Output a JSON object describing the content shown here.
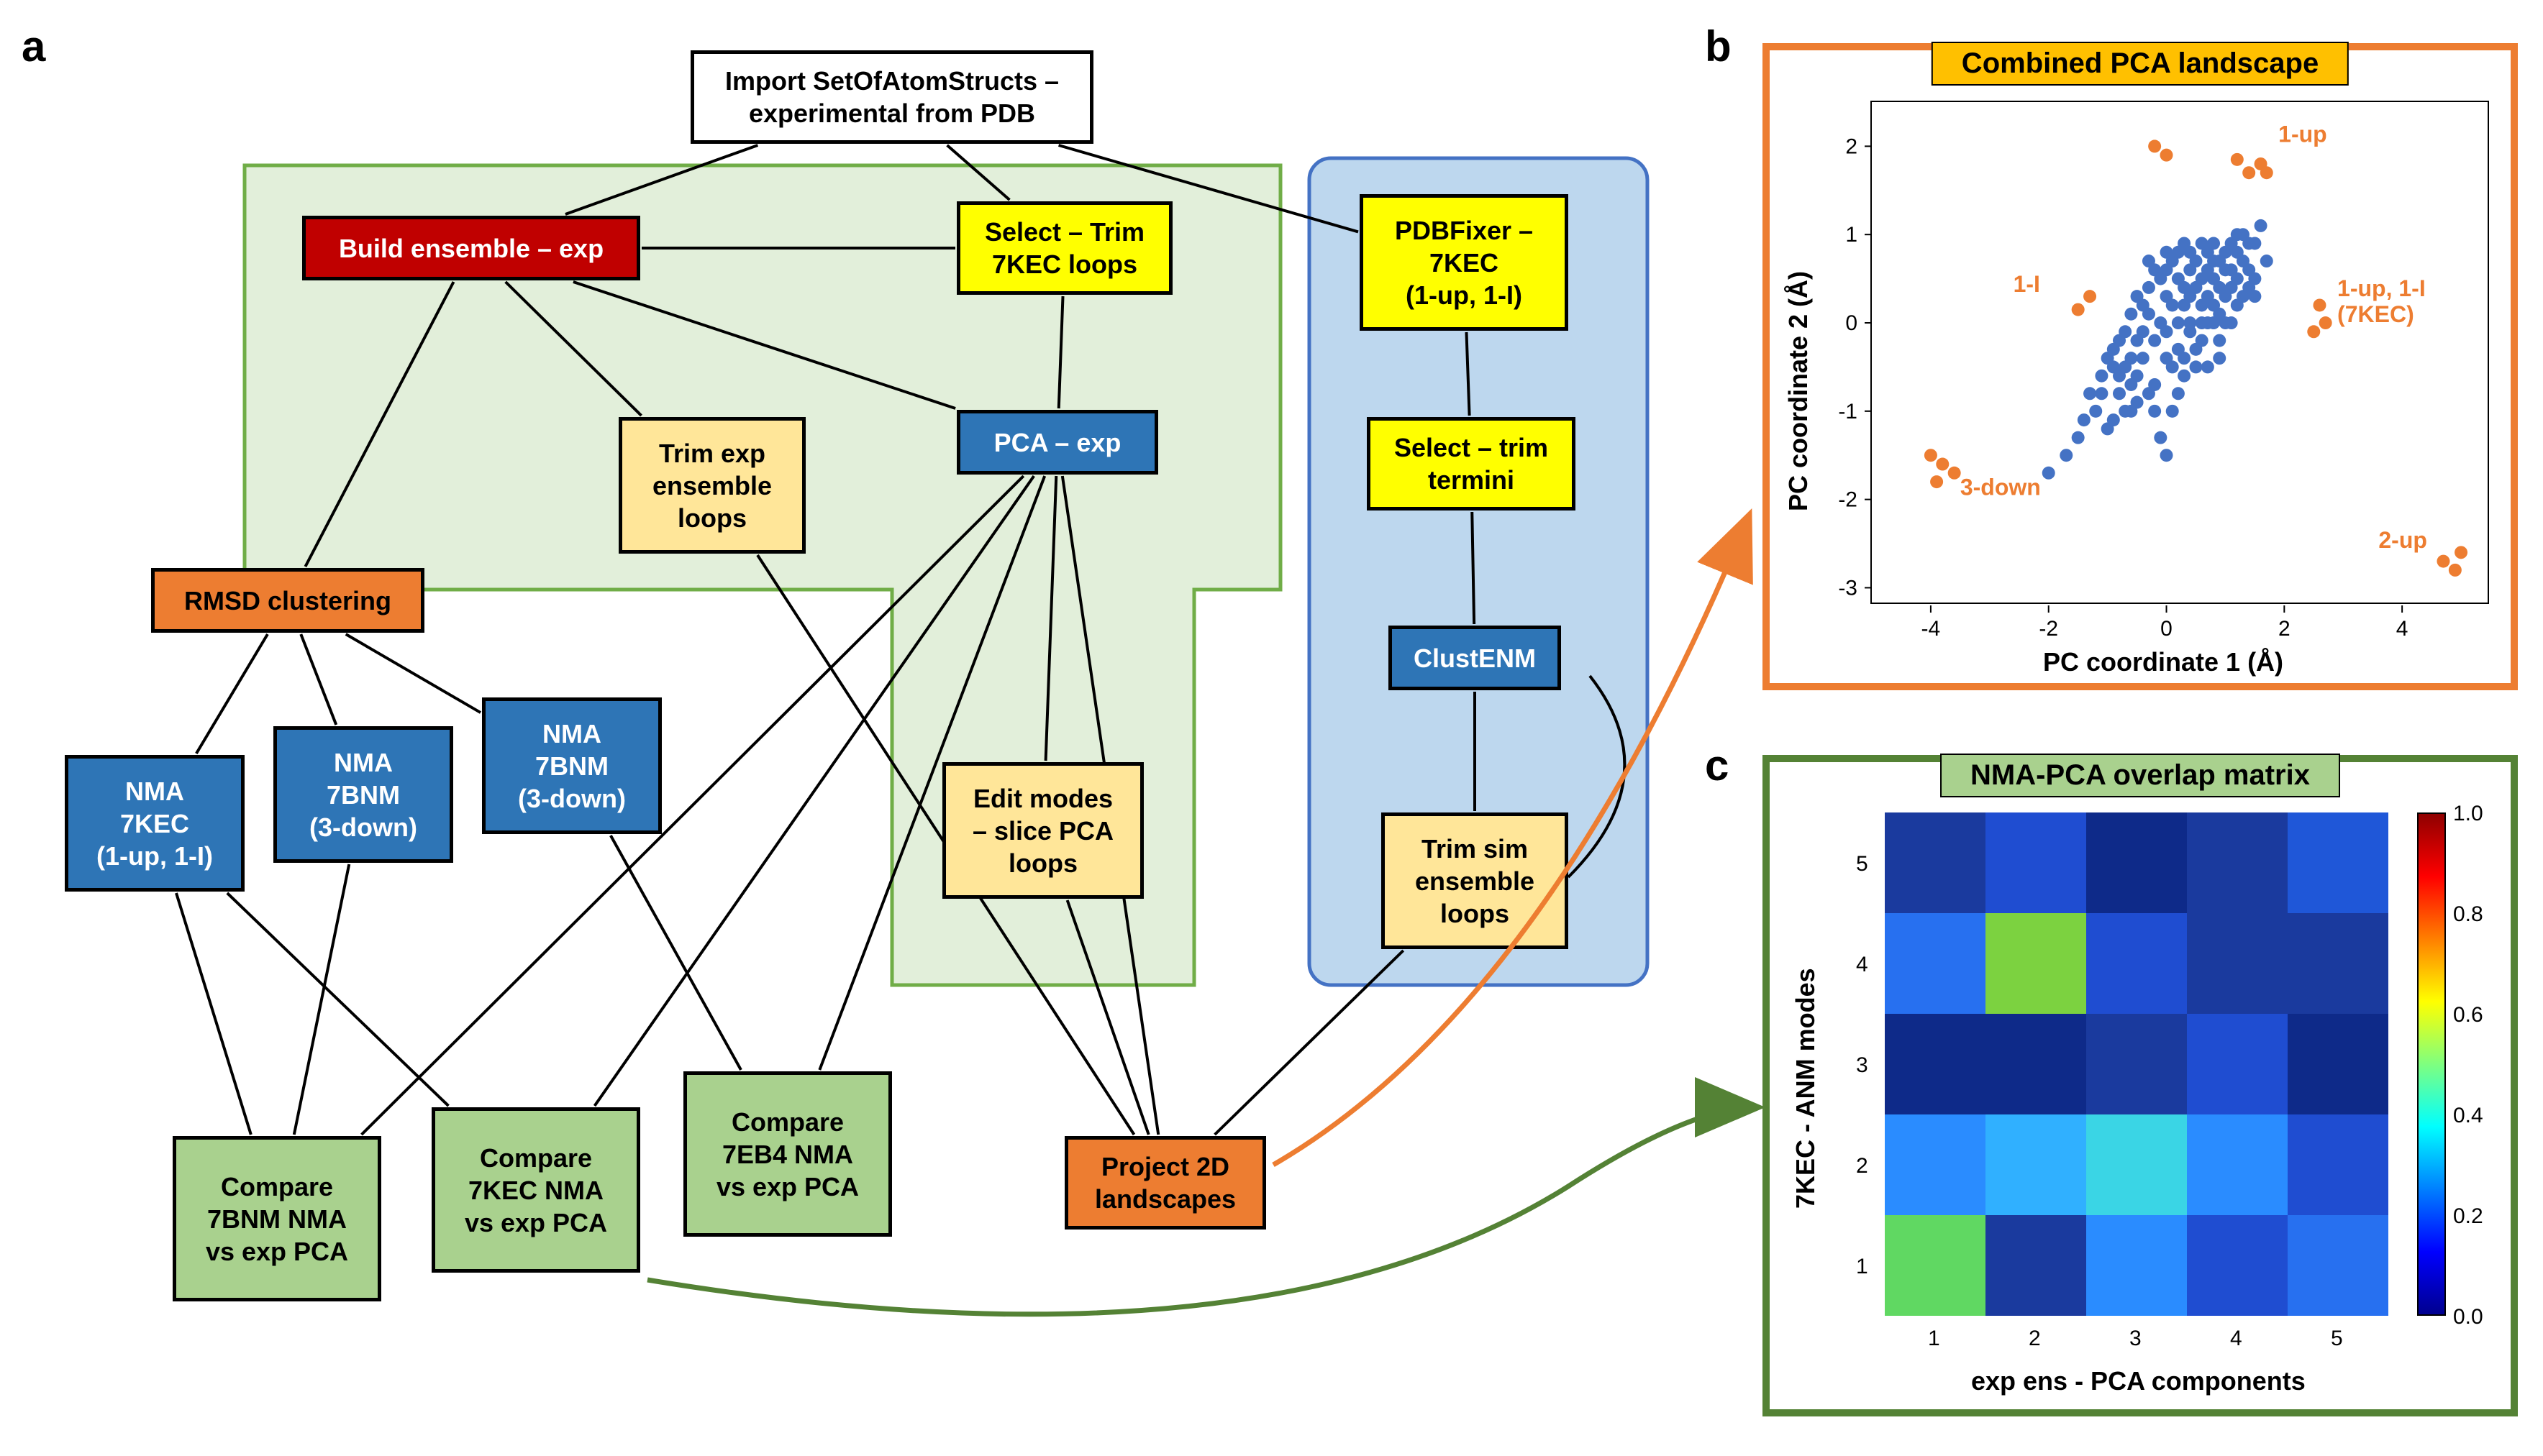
{
  "panel_labels": {
    "a": "a",
    "b": "b",
    "c": "c"
  },
  "regions": {
    "green_bg": "#e2efda",
    "green_border": "#70ad47",
    "blue_bg": "#bdd7ee",
    "blue_border": "#4472c4"
  },
  "nodes": {
    "import": {
      "text": "Import SetOfAtomStructs –\nexperimental from PDB",
      "bg": "#ffffff",
      "fg": "#000000"
    },
    "build_ens": {
      "text": "Build ensemble – exp",
      "bg": "#c00000",
      "fg": "#ffffff"
    },
    "select_trim_7kec": {
      "text": "Select – Trim\n7KEC loops",
      "bg": "#ffff00",
      "fg": "#000000"
    },
    "pdbfixer": {
      "text": "PDBFixer –\n7KEC\n(1-up, 1-I)",
      "bg": "#ffff00",
      "fg": "#000000"
    },
    "select_trim_termini": {
      "text": "Select – trim\ntermini",
      "bg": "#ffff00",
      "fg": "#000000"
    },
    "clustenm": {
      "text": "ClustENM",
      "bg": "#2e75b6",
      "fg": "#ffffff"
    },
    "trim_sim": {
      "text": "Trim sim\nensemble\nloops",
      "bg": "#ffe699",
      "fg": "#000000"
    },
    "trim_exp": {
      "text": "Trim exp\nensemble\nloops",
      "bg": "#ffe699",
      "fg": "#000000"
    },
    "pca_exp": {
      "text": "PCA – exp",
      "bg": "#2e75b6",
      "fg": "#ffffff"
    },
    "rmsd": {
      "text": "RMSD clustering",
      "bg": "#ed7d31",
      "fg": "#000000"
    },
    "nma_7kec": {
      "text": "NMA\n7KEC\n(1-up, 1-I)",
      "bg": "#2e75b6",
      "fg": "#ffffff"
    },
    "nma_7bnm_1": {
      "text": "NMA\n7BNM\n(3-down)",
      "bg": "#2e75b6",
      "fg": "#ffffff"
    },
    "nma_7bnm_2": {
      "text": "NMA\n7BNM\n(3-down)",
      "bg": "#2e75b6",
      "fg": "#ffffff"
    },
    "edit_modes": {
      "text": "Edit modes\n– slice PCA\nloops",
      "bg": "#ffe699",
      "fg": "#000000"
    },
    "compare_7bnm": {
      "text": "Compare\n7BNM NMA\nvs exp PCA",
      "bg": "#a9d18e",
      "fg": "#000000"
    },
    "compare_7kec": {
      "text": "Compare\n7KEC NMA\nvs exp PCA",
      "bg": "#a9d18e",
      "fg": "#000000"
    },
    "compare_7eb4": {
      "text": "Compare\n7EB4 NMA\nvs exp PCA",
      "bg": "#a9d18e",
      "fg": "#000000"
    },
    "project2d": {
      "text": "Project 2D\nlandscapes",
      "bg": "#ed7d31",
      "fg": "#000000"
    }
  },
  "scatter": {
    "title": "Combined PCA landscape",
    "title_bg": "#ffc000",
    "border_color": "#ed7d31",
    "xlabel": "PC coordinate 1 (Å)",
    "ylabel": "PC coordinate 2 (Å)",
    "xlim": [
      -5,
      5.5
    ],
    "ylim": [
      -3.2,
      2.5
    ],
    "xticks": [
      -4,
      -2,
      0,
      2,
      4
    ],
    "yticks": [
      -3,
      -2,
      -1,
      0,
      1,
      2
    ],
    "blue_color": "#4472c4",
    "orange_color": "#ed7d31",
    "annot_color": "#ed7d31",
    "annotations": {
      "1up": "1-up",
      "1I": "1-I",
      "1up1I": "1-up, 1-I\n(7KEC)",
      "3down": "3-down",
      "2up": "2-up"
    },
    "fontsize_tick": 30,
    "fontsize_label": 36,
    "title_fontsize": 40,
    "blue_points": [
      [
        -1.3,
        -0.8
      ],
      [
        -0.9,
        -0.5
      ],
      [
        -0.5,
        -0.2
      ],
      [
        -0.3,
        0.1
      ],
      [
        0.0,
        -0.4
      ],
      [
        0.2,
        0.0
      ],
      [
        0.4,
        0.3
      ],
      [
        0.6,
        0.5
      ],
      [
        0.8,
        0.2
      ],
      [
        1.0,
        0.6
      ],
      [
        1.2,
        0.8
      ],
      [
        1.4,
        0.4
      ],
      [
        0.3,
        -0.6
      ],
      [
        -0.6,
        -1.0
      ],
      [
        -1.0,
        -1.2
      ],
      [
        0.1,
        -1.0
      ],
      [
        -0.7,
        -0.1
      ],
      [
        0.5,
        -0.3
      ],
      [
        1.1,
        0.0
      ],
      [
        1.5,
        0.9
      ],
      [
        1.7,
        0.7
      ],
      [
        0.9,
        -0.2
      ],
      [
        -0.2,
        -0.7
      ],
      [
        -1.5,
        -1.3
      ],
      [
        0.7,
        0.8
      ],
      [
        1.3,
        1.0
      ],
      [
        0.4,
        0.6
      ],
      [
        -0.4,
        -0.4
      ],
      [
        0.0,
        0.3
      ],
      [
        0.6,
        0.0
      ],
      [
        -0.1,
        -1.3
      ],
      [
        0.8,
        0.9
      ],
      [
        1.6,
        1.1
      ],
      [
        -1.1,
        -0.6
      ],
      [
        0.2,
        0.5
      ],
      [
        -0.8,
        -0.8
      ],
      [
        1.0,
        0.3
      ],
      [
        0.3,
        0.9
      ],
      [
        -0.5,
        -0.9
      ],
      [
        1.2,
        0.2
      ],
      [
        0.7,
        -0.5
      ],
      [
        -0.3,
        0.4
      ],
      [
        0.9,
        0.7
      ],
      [
        1.4,
        0.6
      ],
      [
        0.1,
        0.7
      ],
      [
        -1.2,
        -1.0
      ],
      [
        0.5,
        0.4
      ],
      [
        -0.9,
        -0.3
      ],
      [
        1.1,
        0.9
      ],
      [
        0.0,
        -0.1
      ],
      [
        -0.6,
        -0.7
      ],
      [
        0.8,
        0.5
      ],
      [
        0.2,
        -0.3
      ],
      [
        -0.4,
        -0.1
      ],
      [
        1.3,
        0.7
      ],
      [
        0.6,
        0.9
      ],
      [
        -0.1,
        0.0
      ],
      [
        0.4,
        -0.1
      ],
      [
        -0.7,
        -0.5
      ],
      [
        1.5,
        0.5
      ],
      [
        0.3,
        0.2
      ],
      [
        -1.0,
        -0.4
      ],
      [
        0.9,
        0.1
      ],
      [
        0.0,
        0.6
      ],
      [
        -0.5,
        -0.6
      ],
      [
        1.2,
        0.5
      ],
      [
        0.7,
        0.3
      ],
      [
        -0.2,
        -0.2
      ],
      [
        0.5,
        0.7
      ],
      [
        -0.8,
        -0.2
      ],
      [
        1.0,
        0.8
      ],
      [
        0.1,
        -0.5
      ],
      [
        -0.3,
        -0.8
      ],
      [
        0.8,
        0.0
      ],
      [
        0.4,
        0.8
      ],
      [
        -0.6,
        0.1
      ],
      [
        1.1,
        0.4
      ],
      [
        0.2,
        0.8
      ],
      [
        -0.9,
        -1.1
      ],
      [
        0.6,
        -0.2
      ],
      [
        -0.1,
        0.5
      ],
      [
        1.4,
        0.9
      ],
      [
        0.3,
        -0.4
      ],
      [
        -0.7,
        -1.0
      ],
      [
        0.9,
        0.4
      ],
      [
        0.0,
        0.8
      ],
      [
        -0.4,
        0.2
      ],
      [
        1.3,
        0.3
      ],
      [
        0.5,
        -0.5
      ],
      [
        -1.1,
        -0.8
      ],
      [
        0.7,
        0.6
      ],
      [
        0.1,
        0.2
      ],
      [
        -0.2,
        0.6
      ],
      [
        1.0,
        0.0
      ],
      [
        0.4,
        0.0
      ],
      [
        -0.8,
        -0.6
      ],
      [
        1.2,
        1.0
      ],
      [
        0.6,
        0.2
      ],
      [
        -0.5,
        0.3
      ],
      [
        0.8,
        0.7
      ],
      [
        0.2,
        -0.8
      ],
      [
        1.5,
        0.3
      ],
      [
        -0.3,
        0.7
      ],
      [
        0.9,
        -0.4
      ],
      [
        -1.4,
        -1.1
      ],
      [
        0.3,
        0.4
      ],
      [
        1.1,
        0.6
      ],
      [
        -0.6,
        -0.4
      ],
      [
        0.0,
        -1.5
      ],
      [
        -1.7,
        -1.5
      ],
      [
        -2.0,
        -1.7
      ],
      [
        0.7,
        0.0
      ],
      [
        -0.2,
        -1.0
      ]
    ],
    "orange_points": [
      [
        -0.2,
        2.0
      ],
      [
        0.0,
        1.9
      ],
      [
        1.2,
        1.85
      ],
      [
        1.4,
        1.7
      ],
      [
        1.6,
        1.8
      ],
      [
        1.7,
        1.7
      ],
      [
        -1.3,
        0.3
      ],
      [
        -1.5,
        0.15
      ],
      [
        2.6,
        0.2
      ],
      [
        2.7,
        0.0
      ],
      [
        2.5,
        -0.1
      ],
      [
        -3.8,
        -1.6
      ],
      [
        -4.0,
        -1.5
      ],
      [
        -3.6,
        -1.7
      ],
      [
        -3.9,
        -1.8
      ],
      [
        4.7,
        -2.7
      ],
      [
        4.9,
        -2.8
      ],
      [
        5.0,
        -2.6
      ]
    ]
  },
  "heatmap": {
    "title": "NMA-PCA overlap matrix",
    "title_bg": "#a9d18e",
    "border_color": "#548235",
    "xlabel": "exp ens - PCA components",
    "ylabel": "7KEC - ANM modes",
    "xticks": [
      1,
      2,
      3,
      4,
      5
    ],
    "yticks": [
      1,
      2,
      3,
      4,
      5
    ],
    "cbar_ticks": [
      "0.0",
      "0.2",
      "0.4",
      "0.6",
      "0.8",
      "1.0"
    ],
    "rows": 5,
    "cols": 5,
    "colors_rows_top_to_bottom": [
      [
        "#1a3a9e",
        "#1f4dd1",
        "#0e2a89",
        "#1a3a9e",
        "#1f57d8"
      ],
      [
        "#2770f0",
        "#7cd240",
        "#1f4dd1",
        "#1a3a9e",
        "#1a3a9e"
      ],
      [
        "#0e2a89",
        "#0e2a89",
        "#1a3a9e",
        "#1f4dd1",
        "#0e2a89"
      ],
      [
        "#2a8cff",
        "#30b0ff",
        "#3ad5e5",
        "#2a8cff",
        "#1f4dd1"
      ],
      [
        "#60d862",
        "#1a3a9e",
        "#2a8cff",
        "#1f4dd1",
        "#2770f0"
      ]
    ],
    "jet_stops": [
      {
        "p": 0,
        "c": "#00008f"
      },
      {
        "p": 12.5,
        "c": "#0000ff"
      },
      {
        "p": 25,
        "c": "#007fff"
      },
      {
        "p": 37.5,
        "c": "#00ffff"
      },
      {
        "p": 50,
        "c": "#7fff7f"
      },
      {
        "p": 62.5,
        "c": "#ffff00"
      },
      {
        "p": 75,
        "c": "#ff7f00"
      },
      {
        "p": 87.5,
        "c": "#ff0000"
      },
      {
        "p": 100,
        "c": "#8f0000"
      }
    ]
  },
  "arrows": {
    "orange": "#ed7d31",
    "green": "#548235"
  }
}
